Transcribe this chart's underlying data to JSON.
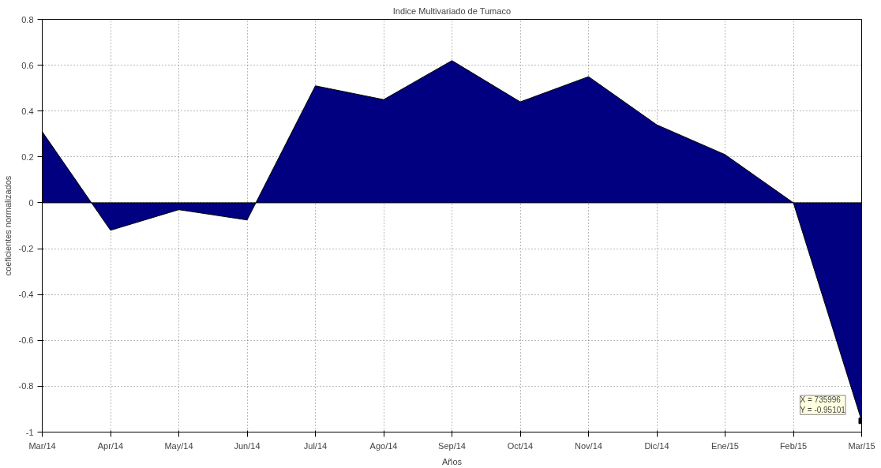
{
  "chart_data": {
    "type": "area",
    "title": "Indice Multivariado de Tumaco",
    "xlabel": "Años",
    "ylabel": "coeficientes normalizados",
    "categories": [
      "Mar/14",
      "Apr/14",
      "May/14",
      "Jun/14",
      "Jul/14",
      "Ago/14",
      "Sep/14",
      "Oct/14",
      "Nov/14",
      "Dic/14",
      "Ene/15",
      "Feb/15",
      "Mar/15"
    ],
    "series": [
      {
        "color": "#000080",
        "values": [
          0.31,
          -0.12,
          -0.03,
          -0.075,
          0.51,
          0.45,
          0.62,
          0.44,
          0.55,
          0.34,
          0.21,
          0.0,
          -0.95101
        ]
      }
    ],
    "ylim": [
      -1,
      0.8
    ],
    "yticks": [
      -1,
      -0.8,
      -0.6,
      -0.4,
      -0.2,
      0,
      0.2,
      0.4,
      0.6,
      0.8
    ],
    "grid": true,
    "line_style": "dotted",
    "annotations": [
      {
        "text": "X = 735996\nY = -0.95101",
        "x": "Mar/15",
        "y": -0.95101
      }
    ]
  }
}
